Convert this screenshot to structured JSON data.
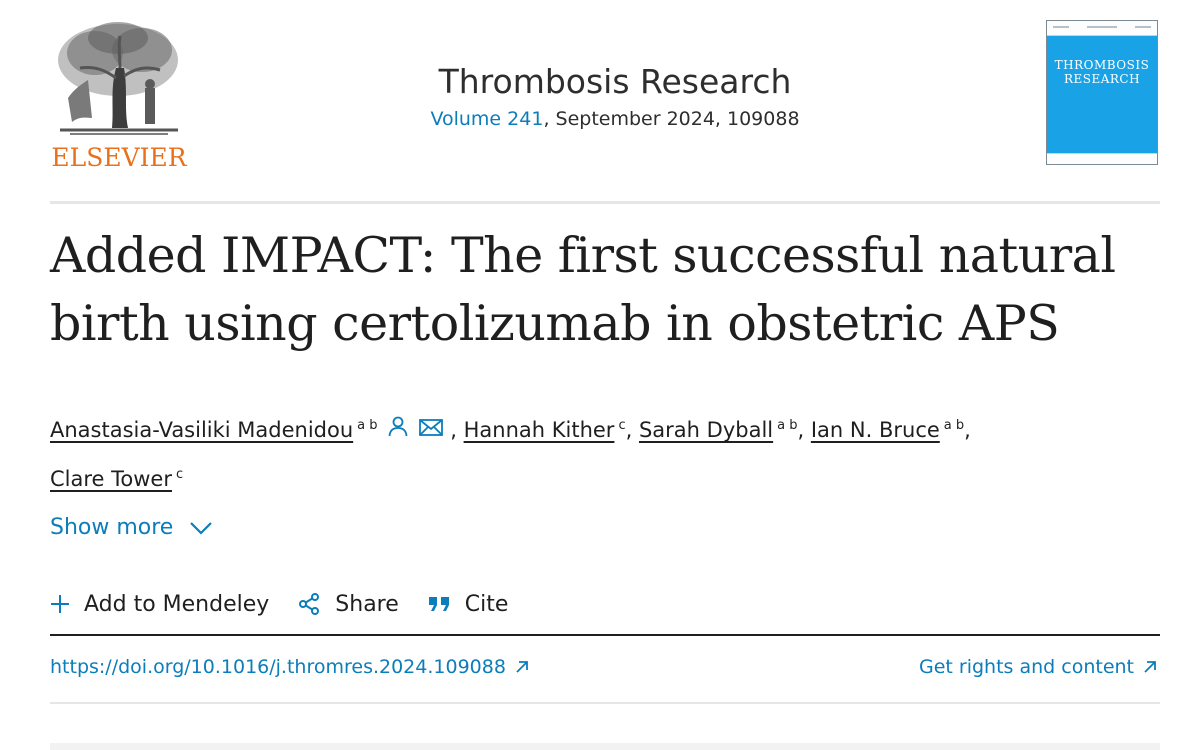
{
  "publisher": {
    "name": "ELSEVIER",
    "logo_icon": "elsevier-tree-logo"
  },
  "journal": {
    "name": "Thrombosis Research",
    "volume_link": "Volume 241",
    "issue_details": ", September 2024, 109088",
    "cover_title_line1": "THROMBOSIS",
    "cover_title_line2": "RESEARCH",
    "cover_color": "#19a3e6"
  },
  "article": {
    "title_line1": "Added IMPACT: The first successful natural",
    "title_line2": "birth using certolizumab in obstetric APS",
    "authors": [
      {
        "name": "Anastasia-Vasiliki Madenidou",
        "affiliations": "a b",
        "icons": [
          "person-icon",
          "envelope-icon"
        ]
      },
      {
        "name": "Hannah Kither",
        "affiliations": "c"
      },
      {
        "name": "Sarah Dyball",
        "affiliations": "a b"
      },
      {
        "name": "Ian N. Bruce",
        "affiliations": "a b"
      },
      {
        "name": "Clare Tower",
        "affiliations": "c"
      }
    ],
    "separator": ","
  },
  "show_more": {
    "label": "Show more",
    "icon": "chevron-down-icon"
  },
  "actions": [
    {
      "label": "Add to Mendeley",
      "icon": "plus-icon"
    },
    {
      "label": "Share",
      "icon": "share-icon"
    },
    {
      "label": "Cite",
      "icon": "quote-icon"
    }
  ],
  "links": {
    "doi": "https://doi.org/10.1016/j.thromres.2024.109088",
    "rights": "Get rights and content",
    "external_icon": "external-arrow-icon"
  },
  "colors": {
    "link": "#0c7dbb",
    "publisher_orange": "#e9711c",
    "text": "#1f1f1f"
  }
}
